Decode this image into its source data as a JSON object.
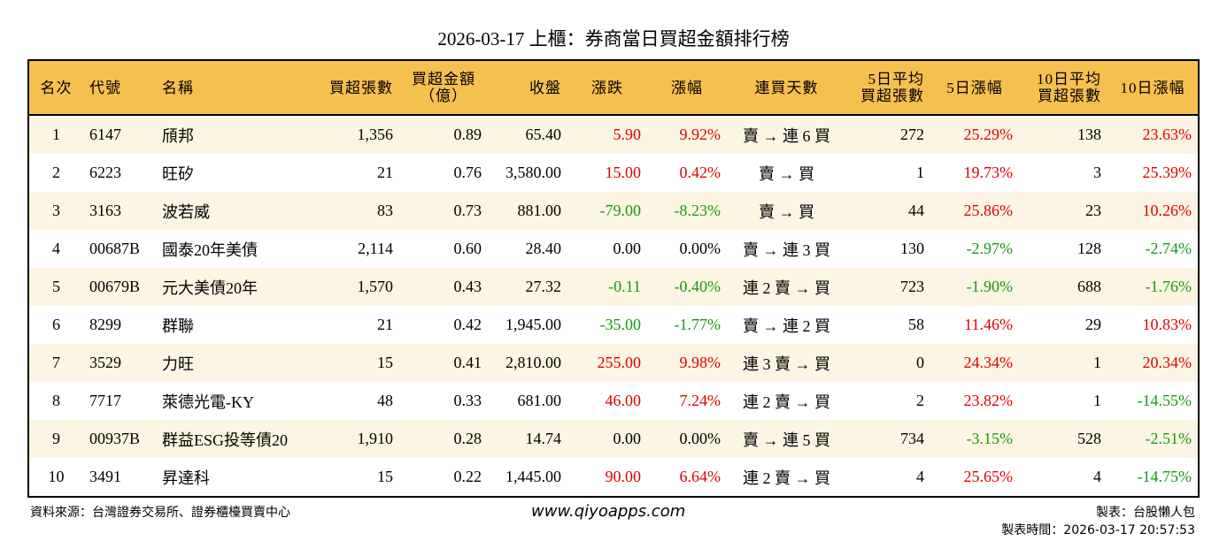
{
  "title": "2026-03-17 上櫃：券商當日買超金額排行榜",
  "headers": [
    "名次",
    "代號",
    "名稱",
    "買超張數",
    "買超金額\n（億）",
    "收盤",
    "漲跌",
    "漲幅",
    "連買天數",
    "5日平均\n買超張數",
    "5日漲幅",
    "10日平均\n買超張數",
    "10日漲幅"
  ],
  "colors": {
    "header_bg": "#f6c04f",
    "stripe_bg": "#fdf5e3",
    "up": "#e00000",
    "down": "#139a13"
  },
  "rows": [
    [
      "1",
      "6147",
      "頎邦",
      "1,356",
      "0.89",
      "65.40",
      "5.90",
      "9.92%",
      "賣 → 連 6 買",
      "272",
      "25.29%",
      "138",
      "23.63%"
    ],
    [
      "2",
      "6223",
      "旺矽",
      "21",
      "0.76",
      "3,580.00",
      "15.00",
      "0.42%",
      "賣 → 買",
      "1",
      "19.73%",
      "3",
      "25.39%"
    ],
    [
      "3",
      "3163",
      "波若威",
      "83",
      "0.73",
      "881.00",
      "-79.00",
      "-8.23%",
      "賣 → 買",
      "44",
      "25.86%",
      "23",
      "10.26%"
    ],
    [
      "4",
      "00687B",
      "國泰20年美債",
      "2,114",
      "0.60",
      "28.40",
      "0.00",
      "0.00%",
      "賣 → 連 3 買",
      "130",
      "-2.97%",
      "128",
      "-2.74%"
    ],
    [
      "5",
      "00679B",
      "元大美債20年",
      "1,570",
      "0.43",
      "27.32",
      "-0.11",
      "-0.40%",
      "連 2 賣 → 買",
      "723",
      "-1.90%",
      "688",
      "-1.76%"
    ],
    [
      "6",
      "8299",
      "群聯",
      "21",
      "0.42",
      "1,945.00",
      "-35.00",
      "-1.77%",
      "賣 → 連 2 買",
      "58",
      "11.46%",
      "29",
      "10.83%"
    ],
    [
      "7",
      "3529",
      "力旺",
      "15",
      "0.41",
      "2,810.00",
      "255.00",
      "9.98%",
      "連 3 賣 → 買",
      "0",
      "24.34%",
      "1",
      "20.34%"
    ],
    [
      "8",
      "7717",
      "萊德光電-KY",
      "48",
      "0.33",
      "681.00",
      "46.00",
      "7.24%",
      "連 2 賣 → 買",
      "2",
      "23.82%",
      "1",
      "-14.55%"
    ],
    [
      "9",
      "00937B",
      "群益ESG投等債20",
      "1,910",
      "0.28",
      "14.74",
      "0.00",
      "0.00%",
      "賣 → 連 5 買",
      "734",
      "-3.15%",
      "528",
      "-2.51%"
    ],
    [
      "10",
      "3491",
      "昇達科",
      "15",
      "0.22",
      "1,445.00",
      "90.00",
      "6.64%",
      "連 2 賣 → 買",
      "4",
      "25.65%",
      "4",
      "-14.75%"
    ]
  ],
  "footer": {
    "source": "資料來源：台灣證券交易所、證券櫃檯買賣中心",
    "site": "www.qiyoapps.com",
    "maker": "製表：台股懶人包",
    "time": "製表時間：2026-03-17 20:57:53"
  }
}
